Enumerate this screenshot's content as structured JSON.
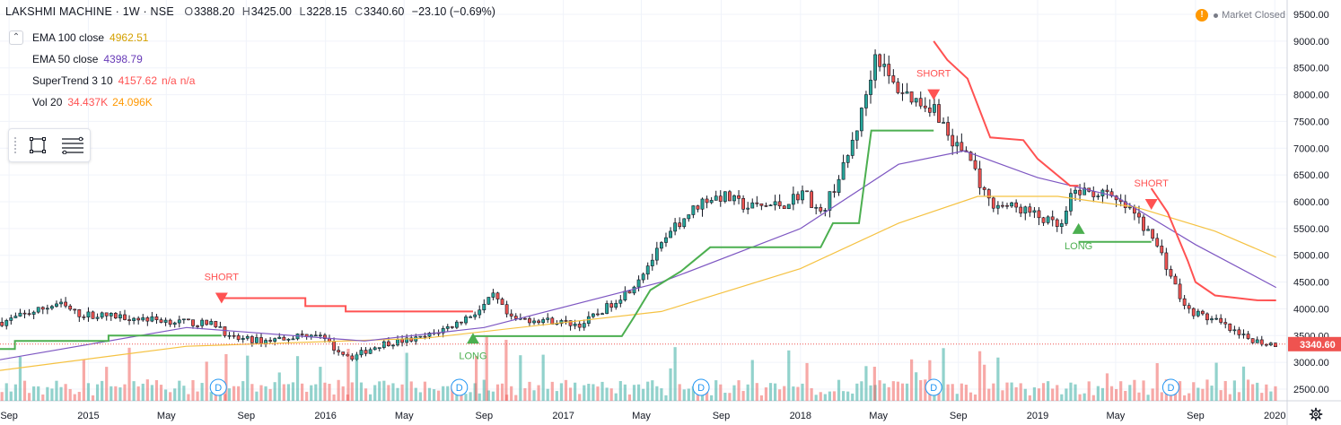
{
  "header": {
    "title": "LAKSHMI MACHINE · 1W · NSE",
    "open_label": "O",
    "open": "3388.20",
    "high_label": "H",
    "high": "3425.00",
    "low_label": "L",
    "low": "3228.15",
    "close_label": "C",
    "close": "3340.60",
    "change": "−23.10 (−0.69%)"
  },
  "indicators": {
    "ema100": {
      "name": "EMA 100 close",
      "value": "4962.51",
      "color": "#f5b700"
    },
    "ema50": {
      "name": "EMA 50 close",
      "value": "4398.79",
      "color": "#673ab7"
    },
    "supertrend": {
      "name": "SuperTrend 3 10",
      "value": "4157.62",
      "na1": "n/a",
      "na2": "n/a",
      "up_color": "#4caf50",
      "down_color": "#ff5252"
    },
    "volume": {
      "name": "Vol 20",
      "value": "34.437K",
      "ma": "24.096K",
      "value_color": "#ff5252",
      "ma_color": "#ff9800"
    }
  },
  "status": {
    "warning_icon": "!",
    "market": "Market Closed"
  },
  "toolbox": {
    "icons": [
      "drag-grip-icon",
      "rectangle-icon",
      "lines-icon"
    ]
  },
  "chart_data": {
    "type": "candlestick",
    "symbol": "LAKSHMI MACHINE",
    "interval": "1W",
    "exchange": "NSE",
    "y_ticks": [
      "9500.00",
      "9000.00",
      "8500.00",
      "8000.00",
      "7500.00",
      "7000.00",
      "6500.00",
      "6000.00",
      "5500.00",
      "5000.00",
      "4500.00",
      "4000.00",
      "3500.00",
      "3000.00",
      "2500.00"
    ],
    "ylim": [
      2300,
      9700
    ],
    "x_ticks": [
      "Sep",
      "2015",
      "May",
      "Sep",
      "2016",
      "May",
      "Sep",
      "2017",
      "May",
      "Sep",
      "2018",
      "May",
      "Sep",
      "2019",
      "May",
      "Sep",
      "2020"
    ],
    "xlim": [
      "2014-08-18",
      "2020-01-20"
    ],
    "last_price": "3340.60",
    "price_path": [
      [
        "2014-08-25",
        3750
      ],
      [
        "2014-10-01",
        3900
      ],
      [
        "2014-11-20",
        4100
      ],
      [
        "2014-12-20",
        3900
      ],
      [
        "2015-03-01",
        3850
      ],
      [
        "2015-06-01",
        3750
      ],
      [
        "2015-07-25",
        3700
      ],
      [
        "2015-08-10",
        3450
      ],
      [
        "2015-10-01",
        3400
      ],
      [
        "2015-12-20",
        3550
      ],
      [
        "2016-01-20",
        3250
      ],
      [
        "2016-02-15",
        3100
      ],
      [
        "2016-04-01",
        3350
      ],
      [
        "2016-06-01",
        3450
      ],
      [
        "2016-07-20",
        3700
      ],
      [
        "2016-09-01",
        4000
      ],
      [
        "2016-09-20",
        4250
      ],
      [
        "2016-10-15",
        3800
      ],
      [
        "2016-12-01",
        3800
      ],
      [
        "2017-02-01",
        3700
      ],
      [
        "2017-03-10",
        4000
      ],
      [
        "2017-04-20",
        4400
      ],
      [
        "2017-05-20",
        4900
      ],
      [
        "2017-07-01",
        5600
      ],
      [
        "2017-08-10",
        6050
      ],
      [
        "2017-09-10",
        6100
      ],
      [
        "2017-10-15",
        5900
      ],
      [
        "2017-12-10",
        5950
      ],
      [
        "2018-01-10",
        6200
      ],
      [
        "2018-02-05",
        5750
      ],
      [
        "2018-03-15",
        6700
      ],
      [
        "2018-04-10",
        7700
      ],
      [
        "2018-05-01",
        8800
      ],
      [
        "2018-05-25",
        8200
      ],
      [
        "2018-07-01",
        7900
      ],
      [
        "2018-08-01",
        7750
      ],
      [
        "2018-08-25",
        7100
      ],
      [
        "2018-09-20",
        6900
      ],
      [
        "2018-10-20",
        6000
      ],
      [
        "2018-12-15",
        5850
      ],
      [
        "2019-02-10",
        5500
      ],
      [
        "2019-03-01",
        6200
      ],
      [
        "2019-04-15",
        6150
      ],
      [
        "2019-06-01",
        5800
      ],
      [
        "2019-07-10",
        5150
      ],
      [
        "2019-08-20",
        4000
      ],
      [
        "2019-10-10",
        3750
      ],
      [
        "2019-11-10",
        3500
      ],
      [
        "2019-12-20",
        3360
      ],
      [
        "2020-01-03",
        3340
      ]
    ],
    "series": [
      {
        "name": "EMA 100 close",
        "last": 4962.51,
        "points": [
          [
            "2014-08-18",
            2850
          ],
          [
            "2015-06-01",
            3300
          ],
          [
            "2016-06-01",
            3450
          ],
          [
            "2017-06-01",
            3950
          ],
          [
            "2018-01-01",
            4750
          ],
          [
            "2018-06-01",
            5600
          ],
          [
            "2018-10-01",
            6100
          ],
          [
            "2019-02-01",
            6100
          ],
          [
            "2019-06-01",
            5900
          ],
          [
            "2019-10-01",
            5450
          ],
          [
            "2020-01-03",
            4962.51
          ]
        ]
      },
      {
        "name": "EMA 50 close",
        "last": 4398.79,
        "points": [
          [
            "2014-08-18",
            3050
          ],
          [
            "2015-06-01",
            3650
          ],
          [
            "2016-03-01",
            3400
          ],
          [
            "2016-09-01",
            3650
          ],
          [
            "2017-06-01",
            4500
          ],
          [
            "2018-01-01",
            5500
          ],
          [
            "2018-06-01",
            6700
          ],
          [
            "2018-09-10",
            6950
          ],
          [
            "2019-01-01",
            6450
          ],
          [
            "2019-05-01",
            6100
          ],
          [
            "2019-09-01",
            5200
          ],
          [
            "2020-01-03",
            4398.79
          ]
        ]
      },
      {
        "name": "SuperTrend 3 10",
        "last": 4157.62,
        "segments": [
          {
            "trend": "up",
            "points": [
              [
                "2014-08-18",
                3250
              ],
              [
                "2014-09-10",
                3250
              ],
              [
                "2014-09-10",
                3400
              ],
              [
                "2015-02-01",
                3400
              ],
              [
                "2015-02-01",
                3500
              ],
              [
                "2015-07-25",
                3500
              ]
            ]
          },
          {
            "trend": "down",
            "points": [
              [
                "2015-07-25",
                4200
              ],
              [
                "2015-12-01",
                4200
              ],
              [
                "2015-12-01",
                4050
              ],
              [
                "2016-02-01",
                4050
              ],
              [
                "2016-02-01",
                3950
              ],
              [
                "2016-08-15",
                3950
              ]
            ]
          },
          {
            "trend": "up",
            "points": [
              [
                "2016-08-15",
                3490
              ],
              [
                "2017-04-01",
                3490
              ],
              [
                "2017-04-20",
                3850
              ],
              [
                "2017-05-15",
                4350
              ],
              [
                "2017-07-01",
                4700
              ],
              [
                "2017-08-15",
                5150
              ],
              [
                "2018-02-01",
                5150
              ],
              [
                "2018-02-20",
                5600
              ],
              [
                "2018-04-01",
                5600
              ],
              [
                "2018-04-20",
                7330
              ],
              [
                "2018-07-25",
                7330
              ]
            ]
          },
          {
            "trend": "down",
            "points": [
              [
                "2018-07-25",
                9000
              ],
              [
                "2018-08-15",
                8650
              ],
              [
                "2018-09-15",
                8300
              ],
              [
                "2018-10-20",
                7200
              ],
              [
                "2018-12-10",
                7150
              ],
              [
                "2019-01-01",
                6800
              ],
              [
                "2019-02-20",
                6300
              ],
              [
                "2019-03-05",
                6300
              ]
            ]
          },
          {
            "trend": "up",
            "points": [
              [
                "2019-03-05",
                5250
              ],
              [
                "2019-06-25",
                5250
              ]
            ]
          },
          {
            "trend": "down",
            "points": [
              [
                "2019-06-25",
                6250
              ],
              [
                "2019-07-20",
                5800
              ],
              [
                "2019-08-20",
                4900
              ],
              [
                "2019-09-01",
                4500
              ],
              [
                "2019-10-01",
                4250
              ],
              [
                "2019-12-05",
                4160
              ],
              [
                "2020-01-03",
                4157.62
              ]
            ]
          }
        ]
      }
    ],
    "signals": [
      {
        "type": "SHORT",
        "date": "2015-07-25",
        "price": 4200
      },
      {
        "type": "LONG",
        "date": "2016-08-15",
        "price": 3450
      },
      {
        "type": "SHORT",
        "date": "2018-07-25",
        "price": 8000
      },
      {
        "type": "LONG",
        "date": "2019-03-05",
        "price": 5500
      },
      {
        "type": "SHORT",
        "date": "2019-06-25",
        "price": 5950
      }
    ],
    "dividends": {
      "label": "D",
      "dates": [
        "2015-07-20",
        "2016-07-25",
        "2017-08-01",
        "2018-07-25",
        "2019-07-25"
      ]
    },
    "grid": true,
    "volume": {
      "value": "34.437K",
      "ma20": "24.096K"
    }
  }
}
